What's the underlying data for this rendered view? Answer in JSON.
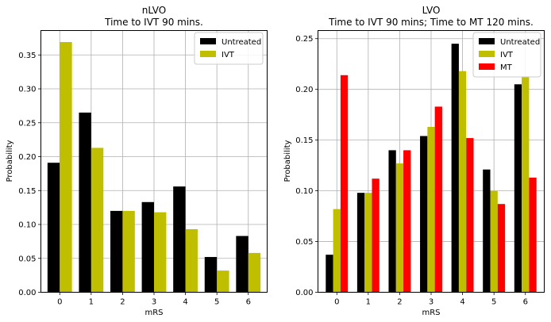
{
  "chart_data": [
    {
      "type": "bar",
      "title": "nLVO",
      "subtitle": "Time to IVT 90 mins.",
      "xlabel": "mRS",
      "ylabel": "Probability",
      "categories": [
        "0",
        "1",
        "2",
        "3",
        "4",
        "5",
        "6"
      ],
      "ylim": [
        0,
        0.386
      ],
      "yticks": [
        "0.00",
        "0.05",
        "0.10",
        "0.15",
        "0.20",
        "0.25",
        "0.30",
        "0.35"
      ],
      "grid": true,
      "legend_position": "top-right",
      "series": [
        {
          "name": "Untreated",
          "color": "#000000",
          "values": [
            0.191,
            0.265,
            0.12,
            0.133,
            0.156,
            0.052,
            0.083
          ]
        },
        {
          "name": "IVT",
          "color": "#bfbf00",
          "values": [
            0.369,
            0.213,
            0.12,
            0.118,
            0.093,
            0.032,
            0.058
          ]
        }
      ]
    },
    {
      "type": "bar",
      "title": "LVO",
      "subtitle": "Time to IVT 90 mins; Time to MT 120 mins.",
      "xlabel": "mRS",
      "ylabel": "Probability",
      "categories": [
        "0",
        "1",
        "2",
        "3",
        "4",
        "5",
        "6"
      ],
      "ylim": [
        0,
        0.258
      ],
      "yticks": [
        "0.00",
        "0.05",
        "0.10",
        "0.15",
        "0.20",
        "0.25"
      ],
      "grid": true,
      "legend_position": "top-right",
      "series": [
        {
          "name": "Untreated",
          "color": "#000000",
          "values": [
            0.037,
            0.098,
            0.14,
            0.154,
            0.245,
            0.121,
            0.205
          ]
        },
        {
          "name": "IVT",
          "color": "#bfbf00",
          "values": [
            0.082,
            0.098,
            0.127,
            0.163,
            0.218,
            0.1,
            0.213
          ]
        },
        {
          "name": "MT",
          "color": "#ff0000",
          "values": [
            0.214,
            0.112,
            0.14,
            0.183,
            0.152,
            0.087,
            0.113
          ]
        }
      ]
    }
  ]
}
